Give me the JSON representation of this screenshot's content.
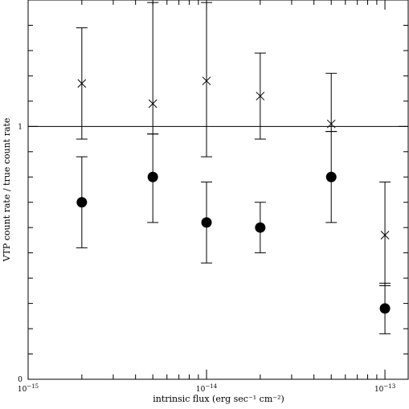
{
  "chart_data": {
    "type": "scatter",
    "title": "",
    "xlabel": "intrinsic flux (erg sec⁻¹ cm⁻²)",
    "ylabel": "VTP count rate / true count rate",
    "x_scale": "log",
    "xlim": [
      1e-15,
      1.35e-13
    ],
    "ylim": [
      0,
      1.5
    ],
    "x_tick_labels": [
      {
        "value": 1e-15,
        "base": "10",
        "exp": "−15"
      },
      {
        "value": 1e-14,
        "base": "10",
        "exp": "−14"
      },
      {
        "value": 1e-13,
        "base": "10",
        "exp": "−13"
      }
    ],
    "y_tick_labels": [
      {
        "value": 0,
        "label": "0"
      },
      {
        "value": 1,
        "label": "1"
      }
    ],
    "reference_line": {
      "y": 1
    },
    "series": [
      {
        "marker": "cross",
        "points": [
          {
            "x": 2e-15,
            "y": 1.17,
            "ylo": 0.95,
            "yhi": 1.39
          },
          {
            "x": 5e-15,
            "y": 1.09,
            "ylo": 0.97,
            "yhi": 1.49
          },
          {
            "x": 1e-14,
            "y": 1.18,
            "ylo": 0.88,
            "yhi": 1.49
          },
          {
            "x": 2e-14,
            "y": 1.12,
            "ylo": 0.95,
            "yhi": 1.29
          },
          {
            "x": 5e-14,
            "y": 1.01,
            "ylo": 0.98,
            "yhi": 1.21
          },
          {
            "x": 1e-13,
            "y": 0.57,
            "ylo": 0.37,
            "yhi": 0.78
          }
        ]
      },
      {
        "marker": "filled-circle",
        "points": [
          {
            "x": 2e-15,
            "y": 0.7,
            "ylo": 0.52,
            "yhi": 0.88
          },
          {
            "x": 5e-15,
            "y": 0.8,
            "ylo": 0.62,
            "yhi": 0.97
          },
          {
            "x": 1e-14,
            "y": 0.62,
            "ylo": 0.46,
            "yhi": 0.78
          },
          {
            "x": 2e-14,
            "y": 0.6,
            "ylo": 0.5,
            "yhi": 0.7
          },
          {
            "x": 5e-14,
            "y": 0.8,
            "ylo": 0.62,
            "yhi": 0.98
          },
          {
            "x": 1e-13,
            "y": 0.28,
            "ylo": 0.18,
            "yhi": 0.38
          }
        ]
      }
    ]
  }
}
